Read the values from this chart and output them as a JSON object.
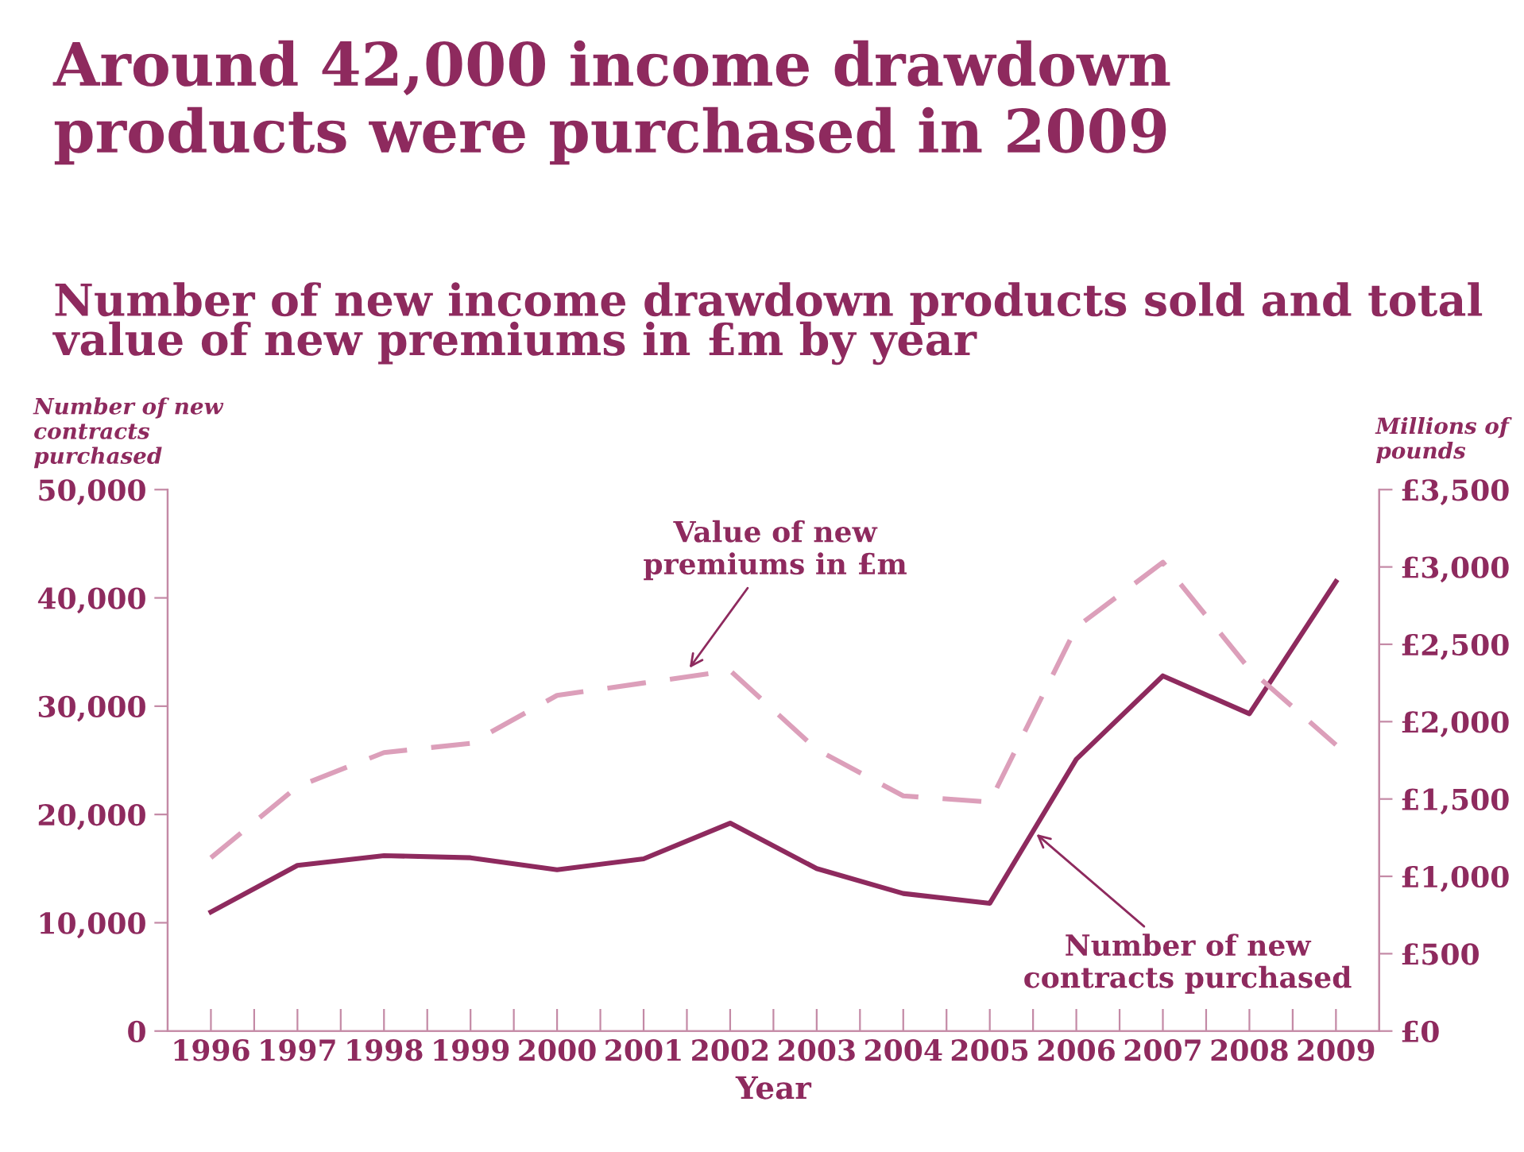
{
  "chart_data": {
    "type": "line",
    "title": "Around 42,000 income drawdown\nproducts were purchased in 2009",
    "subtitle": "Number of new income drawdown products sold and total\nvalue of new premiums in £m by year",
    "xlabel": "Year",
    "ylabel": "Number of new\ncontracts\npurchased",
    "y2label": "Millions of\npounds",
    "x": [
      1996,
      1997,
      1998,
      1999,
      2000,
      2001,
      2002,
      2003,
      2004,
      2005,
      2006,
      2007,
      2008,
      2009
    ],
    "xlim": [
      1995.5,
      2009.5
    ],
    "xticks": [
      {
        "value": 1996,
        "label": "1996"
      },
      {
        "value": 1997,
        "label": "1997"
      },
      {
        "value": 1998,
        "label": "1998"
      },
      {
        "value": 1999,
        "label": "1999"
      },
      {
        "value": 2000,
        "label": "2000"
      },
      {
        "value": 2001,
        "label": "2001"
      },
      {
        "value": 2002,
        "label": "2002"
      },
      {
        "value": 2003,
        "label": "2003"
      },
      {
        "value": 2004,
        "label": "2004"
      },
      {
        "value": 2005,
        "label": "2005"
      },
      {
        "value": 2006,
        "label": "2006"
      },
      {
        "value": 2007,
        "label": "2007"
      },
      {
        "value": 2008,
        "label": "2008"
      },
      {
        "value": 2009,
        "label": "2009"
      },
      {
        "value": 1996.5,
        "label": null
      },
      {
        "value": 1997.5,
        "label": null
      },
      {
        "value": 1998.5,
        "label": null
      },
      {
        "value": 1999.5,
        "label": null
      },
      {
        "value": 2000.5,
        "label": null
      },
      {
        "value": 2001.5,
        "label": null
      },
      {
        "value": 2002.5,
        "label": null
      },
      {
        "value": 2003.5,
        "label": null
      },
      {
        "value": 2004.5,
        "label": null
      },
      {
        "value": 2005.5,
        "label": null
      },
      {
        "value": 2006.5,
        "label": null
      },
      {
        "value": 2007.5,
        "label": null
      },
      {
        "value": 2008.5,
        "label": null
      }
    ],
    "ylim": [
      0,
      50000
    ],
    "yticks": [
      {
        "value": 0,
        "label": "0"
      },
      {
        "value": 10000,
        "label": "10,000"
      },
      {
        "value": 20000,
        "label": "20,000"
      },
      {
        "value": 30000,
        "label": "30,000"
      },
      {
        "value": 40000,
        "label": "40,000"
      },
      {
        "value": 50000,
        "label": "50,000"
      }
    ],
    "y2lim": [
      0,
      3500
    ],
    "y2ticks": [
      {
        "value": 0,
        "label": "£0"
      },
      {
        "value": 500,
        "label": "£500"
      },
      {
        "value": 1000,
        "label": "£1,000"
      },
      {
        "value": 1500,
        "label": "£1,500"
      },
      {
        "value": 2000,
        "label": "£2,000"
      },
      {
        "value": 2500,
        "label": "£2,500"
      },
      {
        "value": 3000,
        "label": "£3,000"
      },
      {
        "value": 3500,
        "label": "£3,500"
      }
    ],
    "series": [
      {
        "color": "#8e2a5e",
        "line_style": "solid",
        "values": [
          11000,
          15300,
          16200,
          16000,
          14900,
          15900,
          19200,
          15000,
          12700,
          11800,
          25100,
          32800,
          29300,
          41500
        ]
      },
      {
        "color": "#dc9fba",
        "line_style": "dashed",
        "axis": "y2",
        "values": [
          1120,
          1580,
          1800,
          1860,
          2170,
          2250,
          2330,
          1820,
          1520,
          1480,
          2610,
          3030,
          2340,
          1850
        ]
      }
    ],
    "annotations": [
      {
        "text": "Value of new\npremiums in £m",
        "x": 2001.5,
        "y": 33200
      },
      {
        "text": "Number of new\ncontracts purchased",
        "x": 2005.5,
        "y": 18450
      }
    ],
    "grid": false,
    "legend": false,
    "marker": "none"
  }
}
